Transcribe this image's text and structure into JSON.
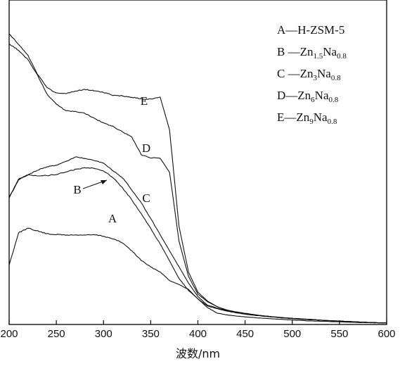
{
  "chart_data": {
    "type": "line",
    "title": "",
    "xlabel": "波数/nm",
    "ylabel": "",
    "xlim": [
      200,
      600
    ],
    "ylim": [
      0,
      100
    ],
    "x_ticks": [
      200,
      250,
      300,
      350,
      400,
      450,
      500,
      550,
      600
    ],
    "grid": false,
    "legend_position": "top-right",
    "legend": [
      {
        "key": "A",
        "parts": [
          {
            "t": "A—H-ZSM-5"
          }
        ]
      },
      {
        "key": "B",
        "parts": [
          {
            "t": "B —Zn"
          },
          {
            "t": "1.5",
            "sub": true
          },
          {
            "t": "Na"
          },
          {
            "t": "0.8",
            "sub": true
          }
        ]
      },
      {
        "key": "C",
        "parts": [
          {
            "t": "C —Zn"
          },
          {
            "t": "3",
            "sub": true
          },
          {
            "t": "Na"
          },
          {
            "t": "0.8",
            "sub": true
          }
        ]
      },
      {
        "key": "D",
        "parts": [
          {
            "t": "D—Zn"
          },
          {
            "t": "6",
            "sub": true
          },
          {
            "t": "Na"
          },
          {
            "t": "0.8",
            "sub": true
          }
        ]
      },
      {
        "key": "E",
        "parts": [
          {
            "t": "E—Zn"
          },
          {
            "t": "9",
            "sub": true
          },
          {
            "t": "Na"
          },
          {
            "t": "0.8",
            "sub": true
          }
        ]
      }
    ],
    "series": [
      {
        "name": "A",
        "label": "A",
        "x": [
          200,
          210,
          220,
          230,
          240,
          250,
          260,
          270,
          280,
          290,
          300,
          310,
          320,
          330,
          340,
          350,
          360,
          370,
          380,
          390,
          400,
          410,
          420,
          430,
          440,
          450,
          460,
          470,
          480,
          490,
          500,
          520,
          540,
          560,
          580,
          600
        ],
        "y": [
          20.2,
          31.2,
          32.7,
          31.8,
          30.8,
          30.6,
          30.4,
          30.4,
          30.4,
          30.5,
          30.0,
          29.1,
          27.8,
          25.0,
          21.8,
          19.5,
          17.9,
          14.9,
          13.6,
          11.9,
          8.7,
          5.8,
          3.9,
          3.3,
          2.9,
          2.6,
          2.3,
          2.1,
          1.9,
          1.7,
          1.5,
          1.2,
          1.0,
          0.8,
          0.6,
          0.5
        ]
      },
      {
        "name": "B",
        "label": "B",
        "x": [
          200,
          210,
          220,
          230,
          240,
          250,
          260,
          270,
          280,
          290,
          300,
          310,
          320,
          330,
          340,
          350,
          360,
          370,
          380,
          390,
          400,
          410,
          420,
          430,
          440,
          450,
          460,
          470,
          480,
          490,
          500,
          520,
          540,
          560,
          580,
          600
        ],
        "y": [
          43.3,
          49.4,
          50.8,
          50.6,
          50.6,
          51.0,
          51.8,
          52.7,
          53.2,
          53.2,
          52.2,
          50.0,
          46.5,
          42.3,
          37.6,
          32.6,
          27.4,
          21.6,
          15.6,
          11.6,
          8.7,
          6.3,
          5.4,
          4.6,
          4.0,
          3.5,
          3.1,
          2.8,
          2.5,
          2.2,
          2.0,
          1.6,
          1.3,
          1.0,
          0.7,
          0.5
        ]
      },
      {
        "name": "C",
        "label": "C",
        "x": [
          200,
          210,
          220,
          230,
          240,
          250,
          260,
          270,
          280,
          290,
          300,
          310,
          320,
          330,
          340,
          350,
          360,
          370,
          380,
          390,
          400,
          410,
          420,
          430,
          440,
          450,
          460,
          470,
          480,
          490,
          500,
          520,
          540,
          560,
          580,
          600
        ],
        "y": [
          43.0,
          49.1,
          50.9,
          52.4,
          53.6,
          54.2,
          55.3,
          57.0,
          56.4,
          55.7,
          54.8,
          52.3,
          49.9,
          45.7,
          41.3,
          36.0,
          30.5,
          25.0,
          19.6,
          14.1,
          9.5,
          6.6,
          5.6,
          4.8,
          4.3,
          3.8,
          3.3,
          2.9,
          2.6,
          2.3,
          2.0,
          1.6,
          1.3,
          1.0,
          0.7,
          0.5
        ]
      },
      {
        "name": "D",
        "label": "D",
        "x": [
          200,
          210,
          220,
          230,
          240,
          250,
          260,
          270,
          280,
          290,
          300,
          310,
          320,
          330,
          340,
          350,
          360,
          370,
          380,
          390,
          400,
          410,
          420,
          430,
          440,
          450,
          460,
          470,
          480,
          490,
          500,
          520,
          540,
          560,
          580,
          600
        ],
        "y": [
          95.4,
          93.2,
          90.0,
          84.7,
          78.4,
          74.9,
          72.7,
          72.4,
          71.8,
          70.1,
          68.5,
          67.3,
          65.5,
          63.7,
          57.7,
          56.6,
          56.5,
          51.7,
          28.3,
          16.4,
          10.3,
          7.8,
          6.1,
          5.0,
          4.3,
          3.8,
          3.3,
          2.9,
          2.6,
          2.3,
          2.1,
          1.7,
          1.3,
          1.0,
          0.7,
          0.5
        ]
      },
      {
        "name": "E",
        "label": "E",
        "x": [
          200,
          210,
          220,
          230,
          240,
          250,
          260,
          270,
          280,
          290,
          300,
          310,
          320,
          330,
          340,
          350,
          360,
          370,
          380,
          390,
          400,
          410,
          420,
          430,
          440,
          450,
          460,
          470,
          480,
          490,
          500,
          520,
          540,
          560,
          580,
          600
        ],
        "y": [
          98.8,
          95.2,
          91.4,
          85.1,
          80.5,
          78.6,
          78.5,
          79.3,
          79.9,
          79.5,
          78.9,
          77.9,
          77.7,
          77.2,
          76.7,
          76.6,
          77.3,
          66.1,
          33.3,
          17.9,
          11.0,
          8.0,
          6.1,
          4.8,
          4.2,
          3.7,
          3.3,
          2.9,
          2.6,
          2.3,
          2.1,
          1.7,
          1.3,
          1.0,
          0.7,
          0.5
        ]
      }
    ]
  }
}
